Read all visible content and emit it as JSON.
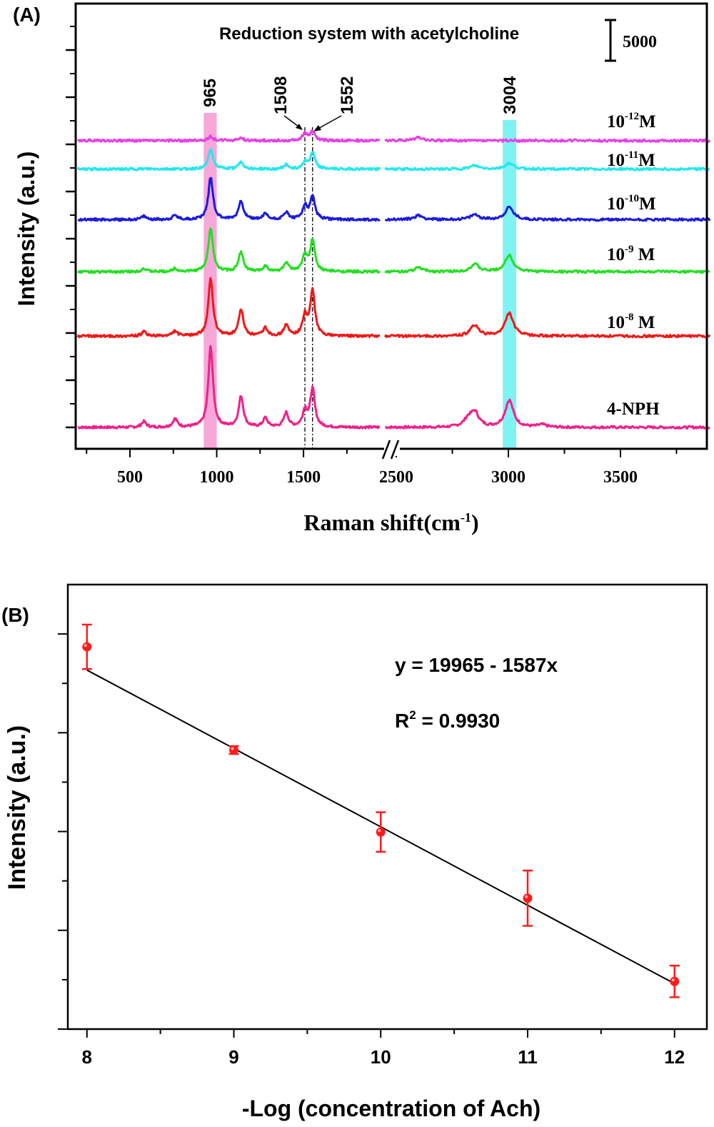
{
  "chart_data": [
    {
      "panel": "(A)",
      "type": "line",
      "title": "Reduction system with acetylcholine",
      "xlabel": "Raman shift(cm",
      "xlabel_sup": "-1",
      "xlabel_end": ")",
      "ylabel": "Intensity (a.u.)",
      "x_segments": [
        [
          200,
          2000
        ],
        [
          2450,
          3900
        ]
      ],
      "x_ticks": [
        500,
        1000,
        1500,
        2500,
        3000,
        3500
      ],
      "x_tick_labels": [
        "500",
        "1000",
        "1500",
        "2500",
        "3000",
        "3500"
      ],
      "ylim": [
        -2600,
        52000
      ],
      "scale_bar": {
        "value": 5000,
        "label": "5000"
      },
      "highlight_bands": [
        {
          "from": 925,
          "to": 1000,
          "color": "#f7a8d8",
          "label": "965"
        },
        {
          "from": 2975,
          "to": 3035,
          "color": "#7ff3f3",
          "label": "3004"
        }
      ],
      "dashed_lines": [
        {
          "x": 1508,
          "label": "1508"
        },
        {
          "x": 1552,
          "label": "1552"
        }
      ],
      "series": [
        {
          "name": "4-NPH",
          "label_base": "4-NPH",
          "label_exp": "",
          "label_unit": "",
          "color": "#f0208a",
          "offset": 0,
          "peaks": [
            [
              580,
              700
            ],
            [
              760,
              1000
            ],
            [
              965,
              9900
            ],
            [
              1140,
              3800
            ],
            [
              1280,
              1100
            ],
            [
              1400,
              1750
            ],
            [
              1508,
              2000
            ],
            [
              1552,
              4650
            ],
            [
              2820,
              900
            ],
            [
              2850,
              1750
            ],
            [
              3004,
              3300
            ],
            [
              3150,
              300
            ]
          ]
        },
        {
          "name": "1e-8 M",
          "label_base": "10",
          "label_exp": "-8",
          "label_unit": "M",
          "color": "#f01818",
          "offset": 11200,
          "peaks": [
            [
              580,
              500
            ],
            [
              760,
              600
            ],
            [
              965,
              7000
            ],
            [
              1140,
              3250
            ],
            [
              1280,
              1000
            ],
            [
              1400,
              1300
            ],
            [
              1508,
              2400
            ],
            [
              1552,
              5500
            ],
            [
              2850,
              1300
            ],
            [
              3004,
              2800
            ]
          ]
        },
        {
          "name": "1e-9 M",
          "label_base": "10",
          "label_exp": "-9",
          "label_unit": "M",
          "color": "#22e022",
          "offset": 19100,
          "peaks": [
            [
              580,
              400
            ],
            [
              760,
              400
            ],
            [
              965,
              5400
            ],
            [
              1140,
              2450
            ],
            [
              1280,
              700
            ],
            [
              1400,
              1100
            ],
            [
              1508,
              2000
            ],
            [
              1552,
              3800
            ],
            [
              2600,
              500
            ],
            [
              2850,
              900
            ],
            [
              3004,
              2000
            ]
          ]
        },
        {
          "name": "1e-10 M",
          "label_base": "10",
          "label_exp": "-10",
          "label_unit": "M",
          "color": "#1a1ae0",
          "offset": 25500,
          "peaks": [
            [
              580,
              400
            ],
            [
              760,
              500
            ],
            [
              965,
              5200
            ],
            [
              1140,
              2350
            ],
            [
              1280,
              700
            ],
            [
              1400,
              900
            ],
            [
              1508,
              1600
            ],
            [
              1552,
              2900
            ],
            [
              2600,
              500
            ],
            [
              2850,
              600
            ],
            [
              3004,
              1500
            ]
          ]
        },
        {
          "name": "1e-11 M",
          "label_base": "10",
          "label_exp": "-11",
          "label_unit": "M",
          "color": "#22e8f0",
          "offset": 31700,
          "peaks": [
            [
              965,
              2500
            ],
            [
              1140,
              900
            ],
            [
              1400,
              500
            ],
            [
              1508,
              900
            ],
            [
              1552,
              2000
            ],
            [
              2850,
              400
            ],
            [
              3004,
              700
            ]
          ]
        },
        {
          "name": "1e-12 M",
          "label_base": "10",
          "label_exp": "-12",
          "label_unit": "M",
          "color": "#e83ee8",
          "offset": 35200,
          "peaks": [
            [
              965,
              500
            ],
            [
              1140,
              350
            ],
            [
              1508,
              900
            ],
            [
              1552,
              1100
            ],
            [
              2600,
              400
            ]
          ]
        }
      ]
    },
    {
      "panel": "(B)",
      "type": "scatter",
      "xlabel": "-Log (concentration of Ach)",
      "ylabel": "Intensity (a.u.)",
      "xlim": [
        7.87,
        12.22
      ],
      "ylim": [
        0,
        9000
      ],
      "x_ticks": [
        8,
        9,
        10,
        11,
        12
      ],
      "x_tick_labels": [
        "8",
        "9",
        "10",
        "11",
        "12"
      ],
      "y_ticks": [
        0,
        2000,
        4000,
        6000,
        8000
      ],
      "x": [
        8,
        9,
        10,
        11,
        12
      ],
      "y": [
        7740,
        5650,
        3990,
        2650,
        965
      ],
      "error": [
        450,
        80,
        400,
        560,
        320
      ],
      "fit": {
        "intercept": 19965,
        "slope": -1587,
        "x_range": [
          8,
          12
        ]
      },
      "equation": "y = 19965 - 1587x",
      "r2_label": "R",
      "r2_sup": "2",
      "r2_value": " = 0.9930",
      "point_color": "#ff1a1a"
    }
  ]
}
